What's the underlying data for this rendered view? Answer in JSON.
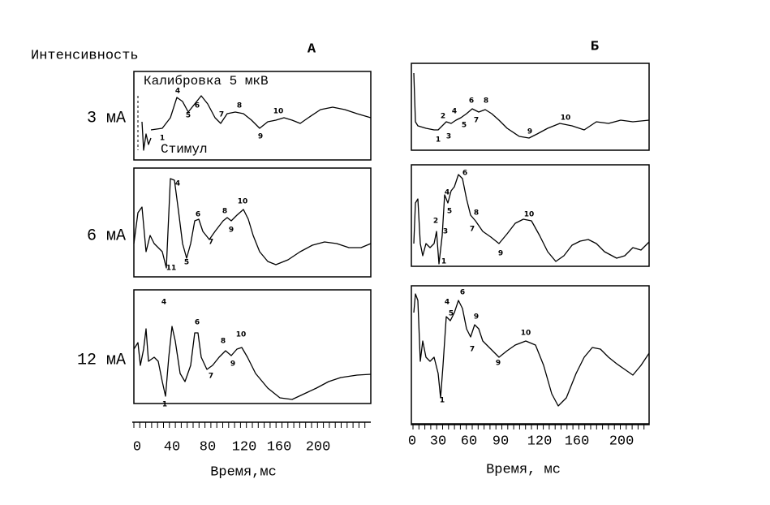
{
  "header": {
    "y_label": "Интенсивность",
    "col_a": "А",
    "col_b": "Б"
  },
  "rows": [
    "3 мА",
    "6 мА",
    "12 мА"
  ],
  "annotations": {
    "calibration": "Калибровка 5 мкВ",
    "stimulus": "Стимул"
  },
  "panels": [
    {
      "peaks": [
        "4",
        "5",
        "6",
        "7",
        "8",
        "9",
        "10",
        "1"
      ]
    },
    {
      "peaks": [
        "4",
        "6",
        "8",
        "10",
        "5",
        "7",
        "9",
        "11"
      ]
    },
    {
      "peaks": [
        "4",
        "6",
        "8",
        "10",
        "1",
        "7",
        "9"
      ]
    },
    {
      "peaks": [
        "2",
        "4",
        "6",
        "8",
        "10",
        "1",
        "3",
        "5",
        "7",
        "9"
      ]
    },
    {
      "peaks": [
        "6",
        "4",
        "5",
        "2",
        "3",
        "1",
        "8",
        "7",
        "10",
        "9"
      ]
    },
    {
      "peaks": [
        "6",
        "4",
        "5",
        "9",
        "7",
        "10",
        "9",
        "1"
      ]
    }
  ],
  "axes": [
    {
      "ticks": [
        "0",
        "40",
        "80",
        "120",
        "160",
        "200"
      ],
      "label": "Время,мс"
    },
    {
      "ticks": [
        "0",
        "30",
        "60",
        "90",
        "120",
        "160",
        "200"
      ],
      "label": "Время, мс"
    }
  ]
}
